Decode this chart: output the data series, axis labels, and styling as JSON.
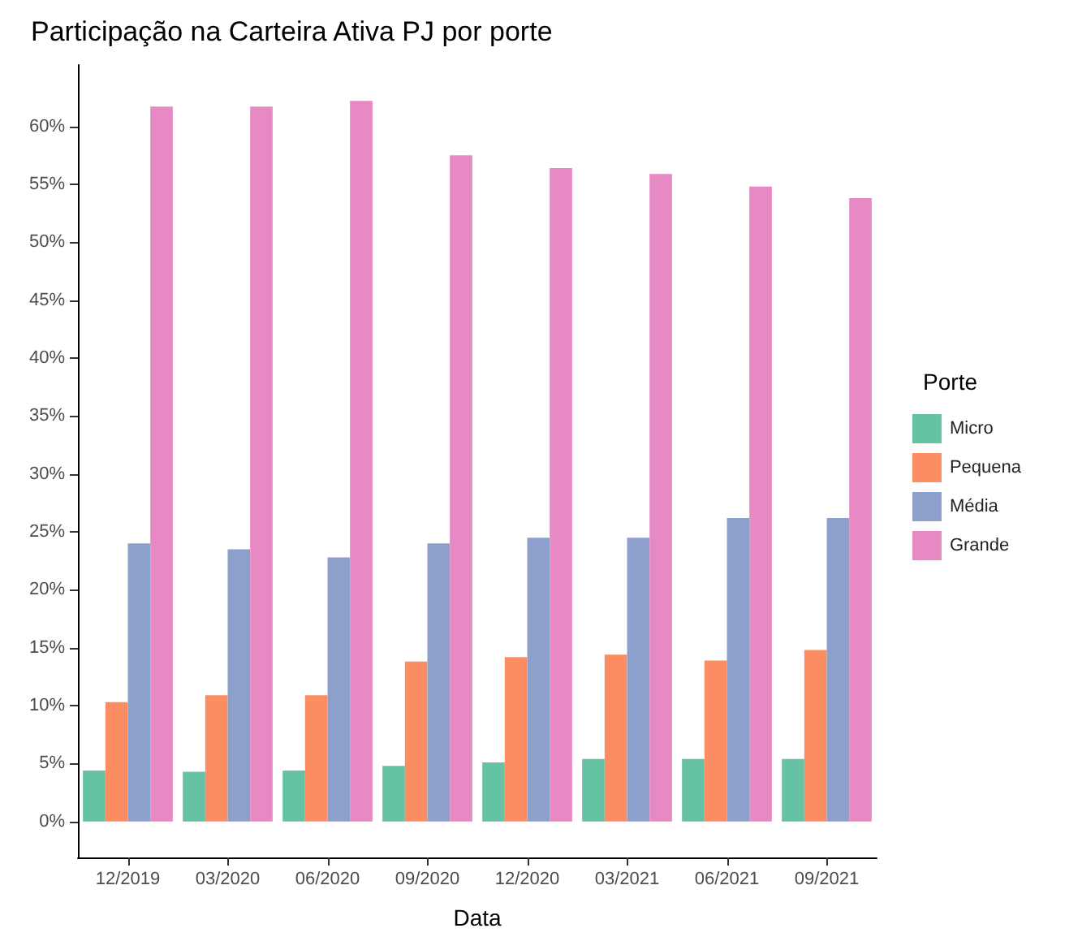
{
  "chart_data": {
    "type": "bar",
    "title": "Participação na Carteira Ativa PJ por porte",
    "xlabel": "Data",
    "legend_title": "Porte",
    "legend": "right",
    "grid": false,
    "categories": [
      "12/2019",
      "03/2020",
      "06/2020",
      "09/2020",
      "12/2020",
      "03/2021",
      "06/2021",
      "09/2021"
    ],
    "series": [
      {
        "name": "Micro",
        "color": "#66c2a5",
        "values": [
          4.4,
          4.3,
          4.4,
          4.8,
          5.1,
          5.4,
          5.4,
          5.4
        ]
      },
      {
        "name": "Pequena",
        "color": "#fc8d62",
        "values": [
          10.3,
          10.9,
          10.9,
          13.8,
          14.2,
          14.4,
          13.9,
          14.8
        ]
      },
      {
        "name": "Média",
        "color": "#8da0cb",
        "values": [
          24.0,
          23.5,
          22.8,
          24.0,
          24.5,
          24.5,
          26.2,
          26.2
        ]
      },
      {
        "name": "Grande",
        "color": "#e78ac3",
        "values": [
          61.7,
          61.7,
          62.2,
          57.5,
          56.4,
          55.9,
          54.8,
          53.8
        ]
      }
    ],
    "ylim": [
      -3.1,
      65.3
    ],
    "yticks": [
      {
        "value": 0,
        "label": "0%"
      },
      {
        "value": 5,
        "label": "5%"
      },
      {
        "value": 10,
        "label": "10%"
      },
      {
        "value": 15,
        "label": "15%"
      },
      {
        "value": 20,
        "label": "20%"
      },
      {
        "value": 25,
        "label": "25%"
      },
      {
        "value": 30,
        "label": "30%"
      },
      {
        "value": 35,
        "label": "35%"
      },
      {
        "value": 40,
        "label": "40%"
      },
      {
        "value": 45,
        "label": "45%"
      },
      {
        "value": 50,
        "label": "50%"
      },
      {
        "value": 55,
        "label": "55%"
      },
      {
        "value": 60,
        "label": "60%"
      }
    ]
  }
}
